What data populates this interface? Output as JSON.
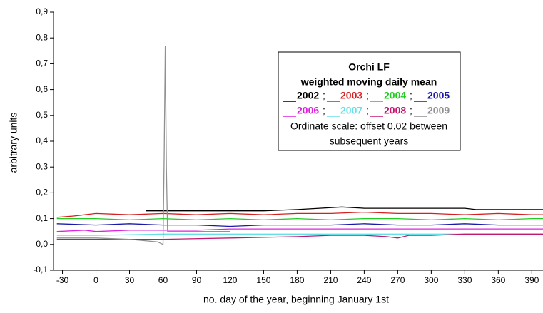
{
  "chart_data": {
    "type": "line",
    "x_label": "no. day of the year, beginning January 1st",
    "y_label": "arbitrary units",
    "legend_title": "Orchi LF",
    "legend_subtitle": "weighted moving daily mean",
    "legend_separator": ";",
    "annotations": [
      "Ordinate scale: offset 0.02 between",
      "subsequent years"
    ],
    "xlim": [
      -38,
      400
    ],
    "ylim": [
      -0.1,
      0.9
    ],
    "xticks": [
      -30,
      0,
      30,
      60,
      90,
      120,
      150,
      180,
      210,
      240,
      270,
      300,
      330,
      360,
      390
    ],
    "yticks": [
      {
        "value": -0.1,
        "label": "-0,1"
      },
      {
        "value": 0.0,
        "label": "0,0"
      },
      {
        "value": 0.1,
        "label": "0,1"
      },
      {
        "value": 0.2,
        "label": "0,2"
      },
      {
        "value": 0.3,
        "label": "0,3"
      },
      {
        "value": 0.4,
        "label": "0,4"
      },
      {
        "value": 0.5,
        "label": "0,5"
      },
      {
        "value": 0.6,
        "label": "0,6"
      },
      {
        "value": 0.7,
        "label": "0,7"
      },
      {
        "value": 0.8,
        "label": "0,8"
      },
      {
        "value": 0.9,
        "label": "0,9"
      }
    ],
    "series": [
      {
        "name": "2002",
        "color": "#000000",
        "x": [
          45,
          90,
          120,
          150,
          180,
          200,
          220,
          240,
          270,
          300,
          330,
          340,
          360,
          390,
          400
        ],
        "values": [
          0.13,
          0.13,
          0.13,
          0.13,
          0.135,
          0.14,
          0.145,
          0.14,
          0.14,
          0.14,
          0.14,
          0.135,
          0.135,
          0.135,
          0.135
        ]
      },
      {
        "name": "2003",
        "color": "#d42020",
        "x": [
          -35,
          -20,
          -10,
          0,
          30,
          60,
          90,
          120,
          150,
          180,
          210,
          240,
          270,
          300,
          330,
          360,
          390,
          400
        ],
        "values": [
          0.105,
          0.11,
          0.115,
          0.12,
          0.115,
          0.12,
          0.115,
          0.12,
          0.115,
          0.12,
          0.12,
          0.125,
          0.12,
          0.12,
          0.115,
          0.12,
          0.115,
          0.115
        ]
      },
      {
        "name": "2004",
        "color": "#22cc22",
        "x": [
          -35,
          0,
          30,
          60,
          90,
          120,
          150,
          180,
          210,
          240,
          270,
          300,
          330,
          360,
          390,
          400
        ],
        "values": [
          0.1,
          0.1,
          0.095,
          0.1,
          0.095,
          0.1,
          0.095,
          0.1,
          0.095,
          0.1,
          0.1,
          0.095,
          0.1,
          0.095,
          0.1,
          0.1
        ]
      },
      {
        "name": "2005",
        "color": "#1a1aaa",
        "x": [
          -35,
          0,
          30,
          60,
          90,
          120,
          150,
          180,
          210,
          240,
          270,
          300,
          330,
          360,
          390,
          400
        ],
        "values": [
          0.08,
          0.075,
          0.08,
          0.075,
          0.075,
          0.07,
          0.075,
          0.075,
          0.075,
          0.08,
          0.075,
          0.075,
          0.08,
          0.075,
          0.075,
          0.075
        ]
      },
      {
        "name": "2006",
        "color": "#dd22dd",
        "x": [
          -35,
          -10,
          0,
          30,
          60,
          90,
          120,
          150,
          180,
          210,
          240,
          270,
          300,
          330,
          360,
          390,
          400
        ],
        "values": [
          0.05,
          0.055,
          0.05,
          0.055,
          0.055,
          0.055,
          0.06,
          0.06,
          0.06,
          0.06,
          0.06,
          0.06,
          0.06,
          0.06,
          0.06,
          0.06,
          0.06
        ]
      },
      {
        "name": "2007",
        "color": "#66e0e8",
        "x": [
          -35,
          0,
          60,
          120,
          180,
          240,
          300,
          360,
          400
        ],
        "values": [
          0.035,
          0.035,
          0.04,
          0.04,
          0.04,
          0.04,
          0.04,
          0.04,
          0.04
        ]
      },
      {
        "name": "2008",
        "color": "#c01a70",
        "x": [
          -35,
          0,
          60,
          120,
          180,
          210,
          240,
          260,
          270,
          280,
          300,
          330,
          360,
          400
        ],
        "values": [
          0.02,
          0.02,
          0.02,
          0.025,
          0.03,
          0.035,
          0.035,
          0.03,
          0.025,
          0.035,
          0.035,
          0.04,
          0.04,
          0.04
        ]
      },
      {
        "name": "2009",
        "color": "#909090",
        "x": [
          -35,
          0,
          30,
          55,
          60,
          61,
          62,
          63,
          64,
          90,
          120
        ],
        "values": [
          0.025,
          0.025,
          0.02,
          0.01,
          0.0,
          0.35,
          0.77,
          0.3,
          0.05,
          0.05,
          0.05
        ]
      }
    ]
  }
}
